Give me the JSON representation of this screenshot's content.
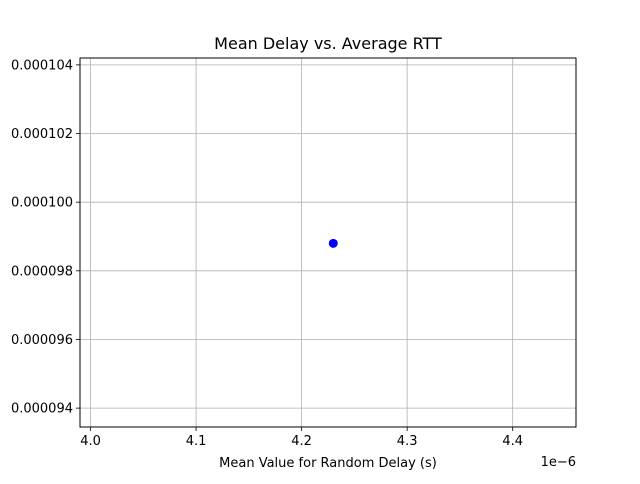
{
  "chart_data": {
    "type": "scatter",
    "title": "Mean Delay vs. Average RTT",
    "xlabel": "Mean Value for Random Delay (s)",
    "ylabel": "",
    "x_offset_label": "1e−6",
    "xlim": [
      3.99,
      4.46
    ],
    "ylim": [
      9.345e-05,
      0.0001042
    ],
    "x_ticks": [
      4.0,
      4.1,
      4.2,
      4.3,
      4.4
    ],
    "x_tick_labels": [
      "4.0",
      "4.1",
      "4.2",
      "4.3",
      "4.4"
    ],
    "y_ticks": [
      9.4e-05,
      9.6e-05,
      9.8e-05,
      0.0001,
      0.000102,
      0.000104
    ],
    "y_tick_labels": [
      "0.000094",
      "0.000096",
      "0.000098",
      "0.000100",
      "0.000102",
      "0.000104"
    ],
    "grid": true,
    "series": [
      {
        "color": "#0000ff",
        "points": [
          {
            "x": 4.23,
            "y": 9.88e-05
          }
        ]
      }
    ]
  }
}
